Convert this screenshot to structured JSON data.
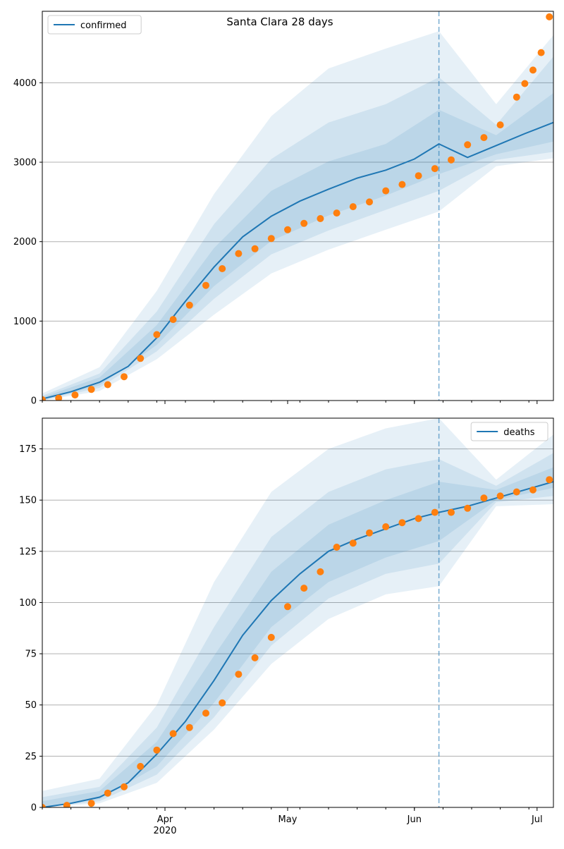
{
  "chart_data": [
    {
      "type": "line",
      "title": "Santa Clara 28 days",
      "xlabel": "",
      "ylabel": "",
      "x_range": [
        "2020-03-02",
        "2020-07-05"
      ],
      "ylim": [
        0,
        4900
      ],
      "y_ticks": [
        0,
        1000,
        2000,
        3000,
        4000
      ],
      "x_ticks": [
        {
          "date": "2020-04-01",
          "label": "Apr",
          "sublabel": "2020"
        },
        {
          "date": "2020-05-01",
          "label": "May",
          "sublabel": ""
        },
        {
          "date": "2020-06-01",
          "label": "Jun",
          "sublabel": ""
        },
        {
          "date": "2020-07-01",
          "label": "Jul",
          "sublabel": ""
        }
      ],
      "grid": "y",
      "legend": {
        "entries": [
          "confirmed"
        ],
        "placement": "upper-left"
      },
      "forecast_start": "2020-06-07",
      "model_line": {
        "name": "confirmed",
        "x": [
          "2020-03-02",
          "2020-03-09",
          "2020-03-16",
          "2020-03-23",
          "2020-03-30",
          "2020-04-06",
          "2020-04-13",
          "2020-04-20",
          "2020-04-27",
          "2020-05-04",
          "2020-05-11",
          "2020-05-18",
          "2020-05-25",
          "2020-06-01",
          "2020-06-07",
          "2020-06-14",
          "2020-06-21",
          "2020-06-28",
          "2020-07-05"
        ],
        "y": [
          20,
          110,
          230,
          430,
          790,
          1250,
          1680,
          2060,
          2320,
          2510,
          2660,
          2800,
          2900,
          3040,
          3230,
          3060,
          3210,
          3360,
          3500
        ]
      },
      "bands": [
        {
          "level": "outer",
          "x": [
            "2020-03-02",
            "2020-03-16",
            "2020-03-30",
            "2020-04-13",
            "2020-04-27",
            "2020-05-11",
            "2020-05-25",
            "2020-06-07",
            "2020-06-21",
            "2020-07-05"
          ],
          "lower": [
            0,
            120,
            520,
            1080,
            1600,
            1900,
            2150,
            2380,
            2950,
            3050
          ],
          "upper": [
            90,
            420,
            1380,
            2600,
            3580,
            4180,
            4430,
            4650,
            3730,
            4600
          ]
        },
        {
          "level": "middle",
          "x": [
            "2020-03-02",
            "2020-03-16",
            "2020-03-30",
            "2020-04-13",
            "2020-04-27",
            "2020-05-11",
            "2020-05-25",
            "2020-06-07",
            "2020-06-21",
            "2020-07-05"
          ],
          "lower": [
            0,
            160,
            620,
            1280,
            1840,
            2140,
            2400,
            2640,
            3030,
            3130
          ],
          "upper": [
            60,
            340,
            1120,
            2220,
            3040,
            3500,
            3730,
            4070,
            3470,
            4330
          ]
        },
        {
          "level": "inner",
          "x": [
            "2020-03-02",
            "2020-03-16",
            "2020-03-30",
            "2020-04-13",
            "2020-04-27",
            "2020-05-11",
            "2020-05-25",
            "2020-06-07",
            "2020-06-21",
            "2020-07-05"
          ],
          "lower": [
            5,
            190,
            700,
            1440,
            2010,
            2330,
            2580,
            2850,
            3100,
            3260
          ],
          "upper": [
            40,
            290,
            950,
            1920,
            2640,
            3010,
            3230,
            3660,
            3340,
            3870
          ]
        }
      ],
      "observed": {
        "name": "confirmed-observed",
        "color": "#ff7f0e",
        "x": [
          "2020-03-02",
          "2020-03-06",
          "2020-03-10",
          "2020-03-14",
          "2020-03-18",
          "2020-03-22",
          "2020-03-26",
          "2020-03-30",
          "2020-04-03",
          "2020-04-07",
          "2020-04-11",
          "2020-04-15",
          "2020-04-19",
          "2020-04-23",
          "2020-04-27",
          "2020-05-01",
          "2020-05-05",
          "2020-05-09",
          "2020-05-13",
          "2020-05-17",
          "2020-05-21",
          "2020-05-25",
          "2020-05-29",
          "2020-06-02",
          "2020-06-06",
          "2020-06-10",
          "2020-06-14",
          "2020-06-18",
          "2020-06-22",
          "2020-06-26",
          "2020-06-28",
          "2020-06-30",
          "2020-07-02",
          "2020-07-04"
        ],
        "y": [
          10,
          30,
          70,
          140,
          200,
          300,
          530,
          830,
          1020,
          1200,
          1450,
          1660,
          1850,
          1910,
          2040,
          2150,
          2230,
          2290,
          2360,
          2440,
          2500,
          2640,
          2720,
          2830,
          2920,
          3030,
          3220,
          3310,
          3470,
          3820,
          3990,
          4160,
          4380,
          4830
        ]
      },
      "colors": {
        "line": "#1f77b4",
        "band": "#1f77b4",
        "observed": "#ff7f0e",
        "forecast_marker": "#1f77b4",
        "grid": "#b0b0b0"
      }
    },
    {
      "type": "line",
      "title": "",
      "xlabel": "",
      "ylabel": "",
      "x_range": [
        "2020-03-02",
        "2020-07-05"
      ],
      "ylim": [
        0,
        190
      ],
      "y_ticks": [
        0,
        25,
        50,
        75,
        100,
        125,
        150,
        175
      ],
      "x_ticks": [
        {
          "date": "2020-04-01",
          "label": "Apr",
          "sublabel": "2020"
        },
        {
          "date": "2020-05-01",
          "label": "May",
          "sublabel": ""
        },
        {
          "date": "2020-06-01",
          "label": "Jun",
          "sublabel": ""
        },
        {
          "date": "2020-07-01",
          "label": "Jul",
          "sublabel": ""
        }
      ],
      "grid": "y",
      "legend": {
        "entries": [
          "deaths"
        ],
        "placement": "upper-right"
      },
      "forecast_start": "2020-06-07",
      "model_line": {
        "name": "deaths",
        "x": [
          "2020-03-02",
          "2020-03-09",
          "2020-03-16",
          "2020-03-23",
          "2020-03-30",
          "2020-04-06",
          "2020-04-13",
          "2020-04-20",
          "2020-04-27",
          "2020-05-04",
          "2020-05-11",
          "2020-05-18",
          "2020-05-25",
          "2020-06-01",
          "2020-06-07",
          "2020-06-14",
          "2020-06-21",
          "2020-06-28",
          "2020-07-05"
        ],
        "y": [
          0,
          2,
          5,
          12,
          26,
          42,
          62,
          84,
          101,
          114,
          125,
          131,
          136,
          141,
          144,
          147,
          151,
          155,
          159
        ]
      },
      "bands": [
        {
          "level": "outer",
          "x": [
            "2020-03-02",
            "2020-03-16",
            "2020-03-30",
            "2020-04-13",
            "2020-04-27",
            "2020-05-11",
            "2020-05-25",
            "2020-06-07",
            "2020-06-21",
            "2020-07-05"
          ],
          "lower": [
            0,
            2,
            12,
            38,
            70,
            92,
            104,
            108,
            147,
            148
          ],
          "upper": [
            8,
            14,
            50,
            110,
            154,
            175,
            185,
            190,
            160,
            182
          ]
        },
        {
          "level": "middle",
          "x": [
            "2020-03-02",
            "2020-03-16",
            "2020-03-30",
            "2020-04-13",
            "2020-04-27",
            "2020-05-11",
            "2020-05-25",
            "2020-06-07",
            "2020-06-21",
            "2020-07-05"
          ],
          "lower": [
            0,
            3,
            16,
            44,
            79,
            102,
            114,
            119,
            149,
            152
          ],
          "upper": [
            5,
            10,
            39,
            88,
            132,
            154,
            165,
            170,
            157,
            173
          ]
        },
        {
          "level": "inner",
          "x": [
            "2020-03-02",
            "2020-03-16",
            "2020-03-30",
            "2020-04-13",
            "2020-04-27",
            "2020-05-11",
            "2020-05-25",
            "2020-06-07",
            "2020-06-21",
            "2020-07-05"
          ],
          "lower": [
            0,
            4,
            20,
            51,
            88,
            110,
            122,
            130,
            150,
            156
          ],
          "upper": [
            3,
            8,
            32,
            74,
            115,
            138,
            150,
            159,
            155,
            166
          ]
        }
      ],
      "observed": {
        "name": "deaths-observed",
        "color": "#ff7f0e",
        "x": [
          "2020-03-02",
          "2020-03-08",
          "2020-03-14",
          "2020-03-18",
          "2020-03-22",
          "2020-03-26",
          "2020-03-30",
          "2020-04-03",
          "2020-04-07",
          "2020-04-11",
          "2020-04-15",
          "2020-04-19",
          "2020-04-23",
          "2020-04-27",
          "2020-05-01",
          "2020-05-05",
          "2020-05-09",
          "2020-05-13",
          "2020-05-17",
          "2020-05-21",
          "2020-05-25",
          "2020-05-29",
          "2020-06-02",
          "2020-06-06",
          "2020-06-10",
          "2020-06-14",
          "2020-06-18",
          "2020-06-22",
          "2020-06-26",
          "2020-06-30",
          "2020-07-04"
        ],
        "y": [
          0,
          1,
          2,
          7,
          10,
          20,
          28,
          36,
          39,
          46,
          51,
          65,
          73,
          83,
          98,
          107,
          115,
          127,
          129,
          134,
          137,
          139,
          141,
          144,
          144,
          146,
          151,
          152,
          154,
          155,
          160
        ]
      },
      "colors": {
        "line": "#1f77b4",
        "band": "#1f77b4",
        "observed": "#ff7f0e",
        "forecast_marker": "#1f77b4",
        "grid": "#b0b0b0"
      }
    }
  ]
}
